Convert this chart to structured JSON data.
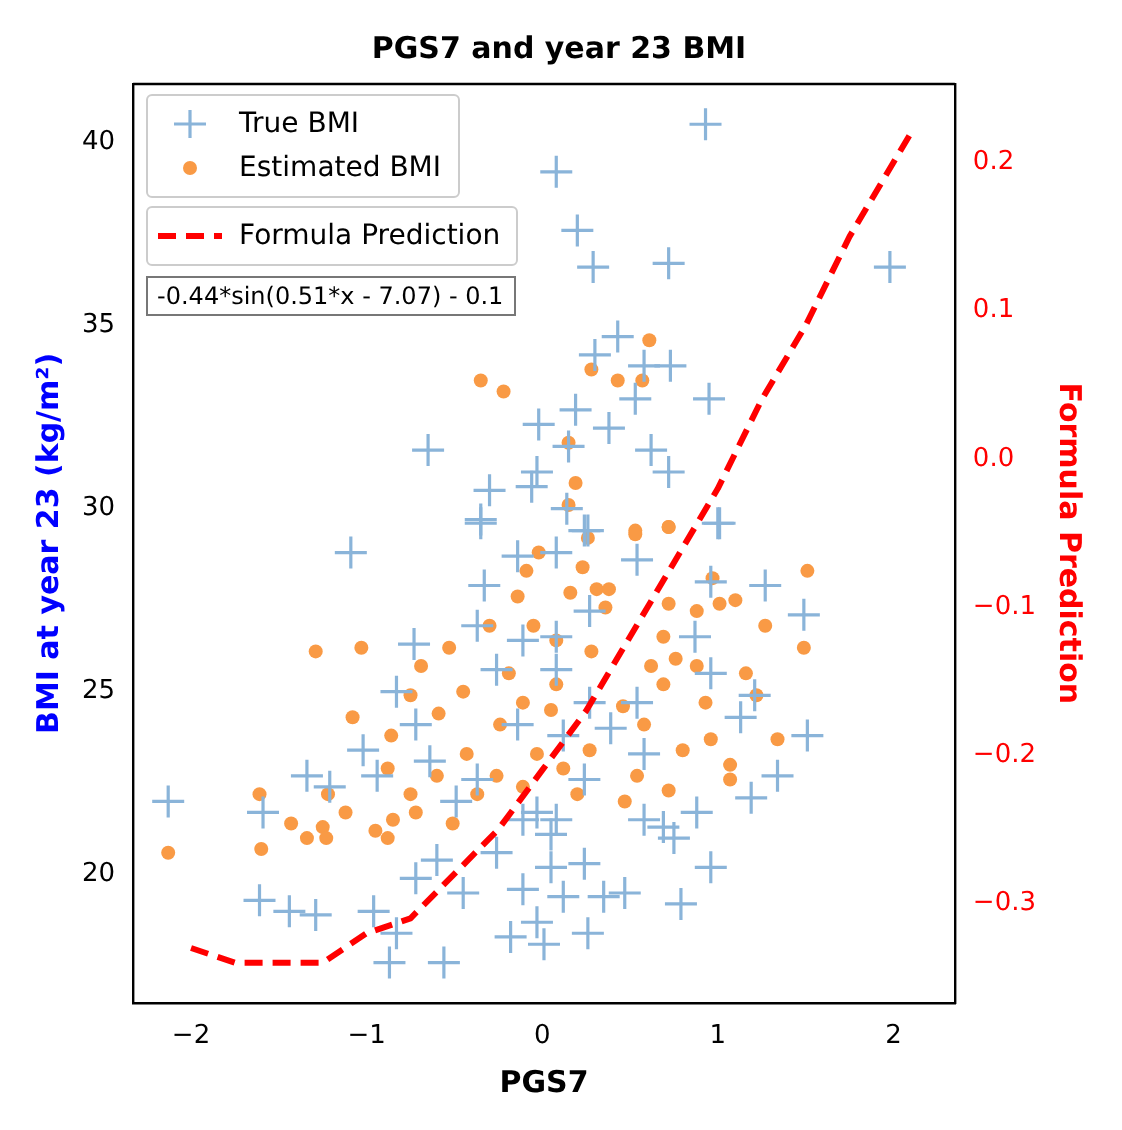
{
  "chart_data": {
    "type": "scatter",
    "title": "PGS7 and year 23 BMI",
    "xlabel": "PGS7",
    "ylabel": "BMI at year 23 (kg/m²)",
    "y2label": "Formula Prediction",
    "annotations": [
      "-0.44*sin(0.51*x - 7.07) - 0.1"
    ],
    "xlim": [
      -2.33,
      2.35
    ],
    "xticks": [
      {
        "value": -2,
        "label": "−2"
      },
      {
        "value": -1,
        "label": "−1"
      },
      0,
      1,
      2
    ],
    "ylim": [
      16.5,
      41.6
    ],
    "yticks": [
      20,
      25,
      30,
      35,
      40
    ],
    "y2lim": [
      -0.367,
      0.253
    ],
    "y2ticks": [
      {
        "value": -0.3,
        "label": "−0.3"
      },
      {
        "value": -0.2,
        "label": "−0.2"
      },
      {
        "value": -0.1,
        "label": "−0.1"
      },
      {
        "value": 0,
        "label": "0.0"
      },
      0.1,
      0.2
    ],
    "grid": false,
    "legend": "top left",
    "series": [
      {
        "name": "True BMI",
        "type": "scatter",
        "marker": "cross",
        "color": "#8ab4d9",
        "x": [
          0.93,
          0.08,
          0.2,
          0.29,
          0.72,
          1.98,
          0.43,
          0.3,
          0.58,
          0.73,
          0.95,
          0.53,
          0.19,
          -0.02,
          0.38,
          -0.65,
          0.62,
          0.15,
          -0.03,
          0.72,
          -0.3,
          -0.06,
          0.14,
          -0.35,
          1.01,
          0.24,
          -0.35,
          -1.09,
          0.26,
          1.0,
          -0.14,
          0.08,
          0.54,
          -0.33,
          0.96,
          1.27,
          1.49,
          -0.37,
          -0.73,
          -0.11,
          0.87,
          -0.83,
          0.96,
          1.21,
          1.51,
          -1.02,
          -1.34,
          -1.21,
          -2.13,
          -1.59,
          -0.94,
          1.34,
          1.19,
          0.88,
          0.69,
          0.75,
          0.96,
          0.58,
          0.24,
          0.05,
          -0.26,
          -0.6,
          -0.72,
          -0.45,
          -0.11,
          0.12,
          0.35,
          0.47,
          0.79,
          -1.61,
          -1.44,
          -1.29,
          -0.96,
          -0.83,
          -0.18,
          -0.03,
          0.01,
          0.26,
          -0.87,
          -0.56,
          -0.11,
          -0.03,
          0.08,
          0.05,
          -0.49,
          -0.37,
          -0.64,
          0.39,
          0.58,
          0.12,
          0.24,
          -0.14,
          -0.26,
          0.08,
          0.27,
          0.54,
          1.13,
          -0.72,
          0.08,
          0.27
        ],
        "values": [
          40.5,
          39.2,
          37.6,
          36.6,
          36.7,
          36.6,
          34.7,
          34.2,
          33.9,
          33.9,
          33.0,
          33.0,
          32.7,
          32.3,
          32.2,
          31.6,
          31.6,
          31.7,
          31.0,
          31.0,
          30.5,
          30.6,
          30.0,
          29.7,
          29.6,
          29.4,
          29.6,
          28.8,
          29.4,
          29.6,
          28.7,
          28.8,
          28.6,
          27.9,
          28.0,
          27.9,
          27.1,
          26.8,
          26.3,
          26.4,
          26.5,
          25.0,
          25.5,
          24.9,
          23.8,
          23.4,
          22.7,
          22.4,
          22.0,
          21.7,
          22.7,
          22.7,
          22.1,
          21.7,
          21.3,
          21.0,
          20.2,
          21.5,
          20.3,
          20.2,
          20.6,
          20.4,
          19.9,
          19.5,
          19.6,
          19.4,
          19.4,
          19.5,
          19.2,
          19.3,
          19.0,
          18.9,
          19.0,
          18.4,
          18.3,
          18.7,
          18.1,
          18.4,
          17.6,
          17.6,
          21.5,
          21.7,
          21.5,
          21.1,
          22.0,
          22.6,
          23.1,
          24.0,
          23.3,
          23.8,
          22.6,
          24.1,
          25.6,
          25.6,
          24.7,
          24.7,
          24.3,
          24.1,
          26.5,
          27.2
        ]
      },
      {
        "name": "Estimated BMI",
        "type": "scatter",
        "marker": "circle",
        "color": "#f99a45",
        "x": [
          0.61,
          -0.35,
          -0.22,
          0.28,
          0.43,
          0.57,
          0.15,
          0.19,
          0.15,
          0.53,
          0.72,
          0.53,
          0.72,
          0.26,
          -0.02,
          -0.09,
          0.23,
          1.51,
          0.97,
          0.31,
          0.38,
          -0.14,
          0.16,
          1.1,
          1.01,
          0.72,
          0.88,
          0.36,
          1.27,
          -0.3,
          -0.05,
          -1.29,
          -1.03,
          -0.53,
          1.49,
          0.69,
          0.08,
          0.28,
          0.62,
          0.76,
          0.88,
          1.16,
          -0.69,
          -0.19,
          0.08,
          0.69,
          1.22,
          -0.75,
          -0.45,
          -0.11,
          0.93,
          -1.08,
          -0.59,
          -0.24,
          0.05,
          0.46,
          0.58,
          -0.86,
          0.96,
          1.34,
          -0.43,
          -0.03,
          0.27,
          0.8,
          -0.88,
          -0.6,
          -0.26,
          0.12,
          0.54,
          1.07,
          1.07,
          0.72,
          -1.61,
          -1.22,
          -0.75,
          -0.37,
          0.47,
          -1.12,
          -0.72,
          -0.51,
          -1.43,
          -1.25,
          -0.95,
          -0.85,
          -1.34,
          -1.23,
          -0.88,
          -2.13,
          -1.6,
          -0.11,
          0.2
        ],
        "values": [
          34.6,
          33.5,
          33.2,
          33.8,
          33.5,
          33.5,
          31.8,
          30.7,
          30.1,
          29.4,
          29.5,
          29.3,
          29.5,
          29.2,
          28.8,
          28.3,
          28.4,
          28.3,
          28.1,
          27.8,
          27.8,
          27.6,
          27.7,
          27.5,
          27.4,
          27.4,
          27.2,
          27.3,
          26.8,
          26.8,
          26.8,
          26.1,
          26.2,
          26.2,
          26.2,
          26.5,
          26.4,
          26.1,
          25.7,
          25.9,
          25.7,
          25.5,
          25.7,
          25.5,
          25.2,
          25.2,
          24.9,
          24.9,
          25.0,
          24.7,
          24.7,
          24.3,
          24.4,
          24.1,
          24.5,
          24.6,
          24.1,
          23.8,
          23.7,
          23.7,
          23.3,
          23.3,
          23.4,
          23.4,
          22.9,
          22.7,
          22.7,
          22.9,
          22.7,
          23.0,
          22.6,
          22.3,
          22.2,
          22.2,
          22.2,
          22.2,
          22.0,
          21.7,
          21.7,
          21.4,
          21.4,
          21.3,
          21.2,
          21.5,
          21.0,
          21.0,
          21.0,
          20.6,
          20.7,
          22.4,
          22.2
        ]
      },
      {
        "name": "Formula Prediction",
        "type": "line",
        "axis": "y2",
        "marker": "none",
        "line_style": "dashed",
        "color": "#ff0000",
        "x": [
          -2,
          -1.75,
          -1.5,
          -1.25,
          -1,
          -0.75,
          -0.5,
          -0.25,
          0,
          0.25,
          0.5,
          0.75,
          1,
          1.25,
          1.5,
          1.75,
          2,
          2.1
        ],
        "values": [
          -0.33,
          -0.34,
          -0.34,
          -0.34,
          -0.32,
          -0.31,
          -0.28,
          -0.25,
          -0.21,
          -0.17,
          -0.12,
          -0.07,
          -0.02,
          0.04,
          0.09,
          0.15,
          0.2,
          0.22
        ]
      }
    ]
  }
}
